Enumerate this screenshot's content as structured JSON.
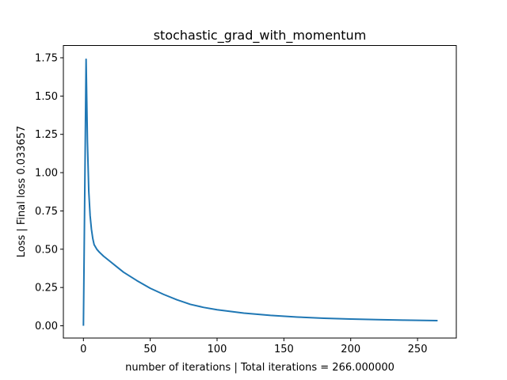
{
  "chart_data": {
    "type": "line",
    "title": "stochastic_grad_with_momentum",
    "xlabel": "number of iterations | Total iterations = 266.000000",
    "ylabel": "Loss | Final loss 0.033657",
    "xlim": [
      -15,
      279
    ],
    "ylim": [
      -0.08,
      1.83
    ],
    "xticks": [
      0,
      50,
      100,
      150,
      200,
      250
    ],
    "xtick_labels": [
      "0",
      "50",
      "100",
      "150",
      "200",
      "250"
    ],
    "yticks": [
      0.0,
      0.25,
      0.5,
      0.75,
      1.0,
      1.25,
      1.5,
      1.75
    ],
    "ytick_labels": [
      "0.00",
      "0.25",
      "0.50",
      "0.75",
      "1.00",
      "1.25",
      "1.50",
      "1.75"
    ],
    "grid": false,
    "legend": "none",
    "series": [
      {
        "color": "#1f77b4",
        "x": [
          0,
          2,
          3,
          4,
          5,
          6,
          7,
          8,
          10,
          12,
          15,
          20,
          25,
          30,
          40,
          50,
          60,
          70,
          80,
          90,
          100,
          120,
          140,
          160,
          180,
          200,
          220,
          240,
          265
        ],
        "y": [
          0.0,
          1.74,
          1.2,
          0.88,
          0.72,
          0.63,
          0.57,
          0.53,
          0.5,
          0.48,
          0.455,
          0.42,
          0.385,
          0.35,
          0.295,
          0.245,
          0.205,
          0.17,
          0.14,
          0.12,
          0.105,
          0.083,
          0.068,
          0.057,
          0.049,
          0.044,
          0.04,
          0.037,
          0.034
        ]
      }
    ]
  }
}
